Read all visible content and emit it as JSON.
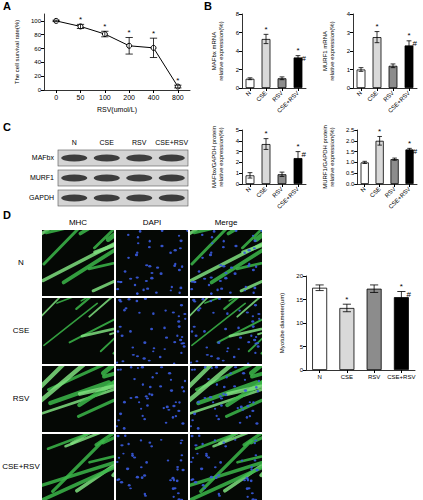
{
  "chart_data": [
    {
      "type": "line",
      "xlabel": "RSV(umol/L)",
      "ylabel": "The cell survival rate(%)",
      "categories": [
        "0",
        "50",
        "100",
        "200",
        "400",
        "800"
      ],
      "values": [
        100,
        92,
        81,
        64,
        61,
        5
      ],
      "errors": [
        1,
        3,
        4,
        12,
        14,
        2
      ],
      "annotations": [
        null,
        [
          "*"
        ],
        [
          "*"
        ],
        [
          "*"
        ],
        [
          "*"
        ],
        [
          "*"
        ]
      ],
      "color": "#000000",
      "marker": "circle",
      "ylim": [
        0,
        110
      ],
      "yticks": [
        0,
        20,
        40,
        60,
        80,
        100
      ],
      "grid": false
    },
    {
      "type": "bar",
      "ylabel": "MAFbx mRNA\nrelative expression(%)",
      "categories": [
        "N",
        "CSE",
        "RSV",
        "CSE+RSV"
      ],
      "values": [
        1.0,
        5.3,
        1.05,
        3.3
      ],
      "errors": [
        0.1,
        0.5,
        0.15,
        0.2
      ],
      "annotations": [
        null,
        [
          "*"
        ],
        null,
        [
          "*",
          "#"
        ]
      ],
      "colors": [
        "#ffffff",
        "#d9d9d9",
        "#8c8c8c",
        "#000000"
      ],
      "ylim": [
        0,
        8
      ],
      "yticks": [
        0,
        2,
        4,
        6,
        8
      ],
      "grid": false
    },
    {
      "type": "bar",
      "ylabel": "MURF1 mRNA\nrelative expression(%)",
      "categories": [
        "N",
        "CSE",
        "RSV",
        "CSE+RSV"
      ],
      "values": [
        1.0,
        2.75,
        1.2,
        2.3
      ],
      "errors": [
        0.1,
        0.3,
        0.1,
        0.25
      ],
      "annotations": [
        null,
        [
          "*"
        ],
        null,
        [
          "*",
          "#"
        ]
      ],
      "colors": [
        "#ffffff",
        "#d9d9d9",
        "#8c8c8c",
        "#000000"
      ],
      "ylim": [
        0,
        4
      ],
      "yticks": [
        0,
        1,
        2,
        3,
        4
      ],
      "grid": false
    },
    {
      "type": "bar",
      "ylabel": "MAFbx/GAPDH protein\nrelative expression(%)",
      "categories": [
        "N",
        "CSE",
        "RSV",
        "CSE+RSV"
      ],
      "values": [
        0.8,
        3.7,
        0.9,
        2.4
      ],
      "errors": [
        0.25,
        0.5,
        0.2,
        0.6
      ],
      "annotations": [
        null,
        [
          "*"
        ],
        null,
        [
          "*",
          "#"
        ]
      ],
      "colors": [
        "#ffffff",
        "#d9d9d9",
        "#8c8c8c",
        "#000000"
      ],
      "ylim": [
        0,
        5
      ],
      "yticks": [
        0,
        1,
        2,
        3,
        4,
        5
      ],
      "grid": false
    },
    {
      "type": "bar",
      "ylabel": "MURF1/GAPDH protein\nrelative expression(%)",
      "categories": [
        "N",
        "CSE",
        "RSV",
        "CSE+RSV"
      ],
      "values": [
        1.0,
        2.0,
        1.15,
        1.6
      ],
      "errors": [
        0.05,
        0.2,
        0.05,
        0.05
      ],
      "annotations": [
        null,
        [
          "*"
        ],
        null,
        [
          "*",
          "#"
        ]
      ],
      "colors": [
        "#ffffff",
        "#d9d9d9",
        "#8c8c8c",
        "#000000"
      ],
      "ylim": [
        0,
        2.5
      ],
      "yticks": [
        {
          "value": 0,
          "label": "0.0"
        },
        0.5,
        {
          "value": 1,
          "label": "1.0"
        },
        1.5,
        {
          "value": 2,
          "label": "2.0"
        },
        2.5
      ],
      "grid": false
    },
    {
      "type": "bar",
      "ylabel": "Myotube diameter(um)",
      "categories": [
        "N",
        "CSE",
        "RSV",
        "CSE+RSV"
      ],
      "values": [
        17.5,
        13.2,
        17.3,
        15.5
      ],
      "errors": [
        0.6,
        0.8,
        0.8,
        1.2
      ],
      "annotations": [
        null,
        [
          "*"
        ],
        null,
        [
          "*",
          "#"
        ]
      ],
      "colors": [
        "#ffffff",
        "#d9d9d9",
        "#8c8c8c",
        "#000000"
      ],
      "ylim": [
        0,
        20
      ],
      "yticks": [
        0,
        5,
        10,
        15,
        20
      ],
      "grid": false
    }
  ],
  "panel_labels": [
    "A",
    "B",
    "C",
    "D"
  ],
  "blot": {
    "proteins": [
      "MAFbx",
      "MURF1",
      "GAPDH"
    ],
    "lanes": [
      "N",
      "CSE",
      "RSV",
      "CSE+RSV"
    ]
  },
  "micrographs": {
    "columns": [
      "MHC",
      "DAPI",
      "Merge"
    ],
    "rows": [
      "N",
      "CSE",
      "RSV",
      "CSE+RSV"
    ]
  }
}
